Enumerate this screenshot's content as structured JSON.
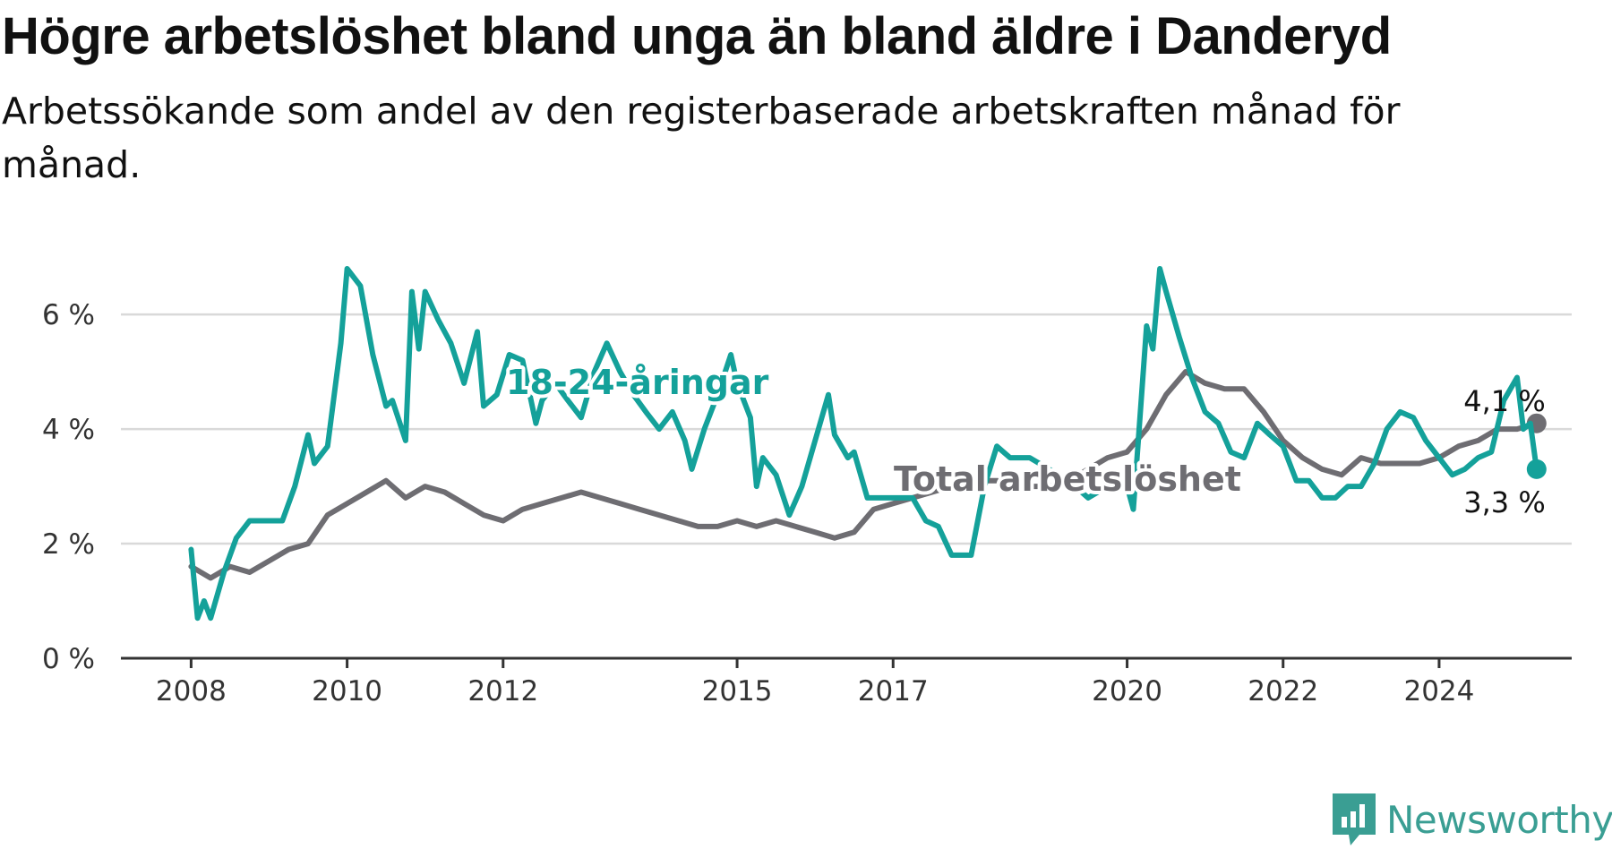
{
  "title": "Högre arbetslöshet bland unga än bland äldre i Danderyd",
  "subtitle": "Arbetssökande som andel av den registerbaserade arbetskraften månad för månad.",
  "logo_text": "Newsworthy",
  "colors": {
    "youth": "#14a19a",
    "total": "#6e6d72",
    "grid": "#d9d9d9",
    "axis": "#333333"
  },
  "chart_data": {
    "type": "line",
    "x_range": [
      2007.1,
      2025.7
    ],
    "ylim": [
      0,
      6.8
    ],
    "y_ticks": [
      0,
      2,
      4,
      6
    ],
    "y_tick_labels": [
      "0 %",
      "2 %",
      "4 %",
      "6 %"
    ],
    "x_ticks": [
      2008,
      2010,
      2012,
      2015,
      2017,
      2020,
      2022,
      2024
    ],
    "x_tick_labels": [
      "2008",
      "2010",
      "2012",
      "2015",
      "2017",
      "2020",
      "2022",
      "2024"
    ],
    "series": [
      {
        "name": "Total arbetslöshet",
        "color": "#6e6d72",
        "end_label": "4,1 %",
        "points": [
          [
            2008.0,
            1.6
          ],
          [
            2008.25,
            1.4
          ],
          [
            2008.5,
            1.6
          ],
          [
            2008.75,
            1.5
          ],
          [
            2009.0,
            1.7
          ],
          [
            2009.25,
            1.9
          ],
          [
            2009.5,
            2.0
          ],
          [
            2009.75,
            2.5
          ],
          [
            2010.0,
            2.7
          ],
          [
            2010.25,
            2.9
          ],
          [
            2010.5,
            3.1
          ],
          [
            2010.75,
            2.8
          ],
          [
            2011.0,
            3.0
          ],
          [
            2011.25,
            2.9
          ],
          [
            2011.5,
            2.7
          ],
          [
            2011.75,
            2.5
          ],
          [
            2012.0,
            2.4
          ],
          [
            2012.25,
            2.6
          ],
          [
            2012.5,
            2.7
          ],
          [
            2012.75,
            2.8
          ],
          [
            2013.0,
            2.9
          ],
          [
            2013.25,
            2.8
          ],
          [
            2013.5,
            2.7
          ],
          [
            2013.75,
            2.6
          ],
          [
            2014.0,
            2.5
          ],
          [
            2014.25,
            2.4
          ],
          [
            2014.5,
            2.3
          ],
          [
            2014.75,
            2.3
          ],
          [
            2015.0,
            2.4
          ],
          [
            2015.25,
            2.3
          ],
          [
            2015.5,
            2.4
          ],
          [
            2015.75,
            2.3
          ],
          [
            2016.0,
            2.2
          ],
          [
            2016.25,
            2.1
          ],
          [
            2016.5,
            2.2
          ],
          [
            2016.75,
            2.6
          ],
          [
            2017.0,
            2.7
          ],
          [
            2017.25,
            2.8
          ],
          [
            2017.5,
            2.9
          ],
          [
            2017.75,
            3.0
          ],
          [
            2018.0,
            3.1
          ],
          [
            2018.25,
            3.1
          ],
          [
            2018.5,
            3.1
          ],
          [
            2018.75,
            3.0
          ],
          [
            2019.0,
            3.0
          ],
          [
            2019.25,
            3.1
          ],
          [
            2019.5,
            3.3
          ],
          [
            2019.75,
            3.5
          ],
          [
            2020.0,
            3.6
          ],
          [
            2020.25,
            4.0
          ],
          [
            2020.5,
            4.6
          ],
          [
            2020.75,
            5.0
          ],
          [
            2021.0,
            4.8
          ],
          [
            2021.25,
            4.7
          ],
          [
            2021.5,
            4.7
          ],
          [
            2021.75,
            4.3
          ],
          [
            2022.0,
            3.8
          ],
          [
            2022.25,
            3.5
          ],
          [
            2022.5,
            3.3
          ],
          [
            2022.75,
            3.2
          ],
          [
            2023.0,
            3.5
          ],
          [
            2023.25,
            3.4
          ],
          [
            2023.5,
            3.4
          ],
          [
            2023.75,
            3.4
          ],
          [
            2024.0,
            3.5
          ],
          [
            2024.25,
            3.7
          ],
          [
            2024.5,
            3.8
          ],
          [
            2024.75,
            4.0
          ],
          [
            2025.0,
            4.0
          ],
          [
            2025.25,
            4.1
          ]
        ]
      },
      {
        "name": "18-24-åringar",
        "color": "#14a19a",
        "end_label": "3,3 %",
        "points": [
          [
            2008.0,
            1.9
          ],
          [
            2008.083,
            0.7
          ],
          [
            2008.167,
            1.0
          ],
          [
            2008.25,
            0.7
          ],
          [
            2008.42,
            1.5
          ],
          [
            2008.58,
            2.1
          ],
          [
            2008.75,
            2.4
          ],
          [
            2009.0,
            2.4
          ],
          [
            2009.17,
            2.4
          ],
          [
            2009.33,
            3.0
          ],
          [
            2009.5,
            3.9
          ],
          [
            2009.58,
            3.4
          ],
          [
            2009.75,
            3.7
          ],
          [
            2009.92,
            5.5
          ],
          [
            2010.0,
            6.8
          ],
          [
            2010.17,
            6.5
          ],
          [
            2010.33,
            5.3
          ],
          [
            2010.5,
            4.4
          ],
          [
            2010.58,
            4.5
          ],
          [
            2010.75,
            3.8
          ],
          [
            2010.83,
            6.4
          ],
          [
            2010.92,
            5.4
          ],
          [
            2011.0,
            6.4
          ],
          [
            2011.17,
            5.9
          ],
          [
            2011.33,
            5.5
          ],
          [
            2011.5,
            4.8
          ],
          [
            2011.67,
            5.7
          ],
          [
            2011.75,
            4.4
          ],
          [
            2011.92,
            4.6
          ],
          [
            2012.08,
            5.3
          ],
          [
            2012.25,
            5.2
          ],
          [
            2012.42,
            4.1
          ],
          [
            2012.5,
            4.5
          ],
          [
            2012.67,
            4.8
          ],
          [
            2012.83,
            4.5
          ],
          [
            2013.0,
            4.2
          ],
          [
            2013.17,
            5.0
          ],
          [
            2013.33,
            5.5
          ],
          [
            2013.5,
            5.0
          ],
          [
            2013.67,
            4.6
          ],
          [
            2013.83,
            4.3
          ],
          [
            2014.0,
            4.0
          ],
          [
            2014.17,
            4.3
          ],
          [
            2014.33,
            3.8
          ],
          [
            2014.42,
            3.3
          ],
          [
            2014.58,
            4.0
          ],
          [
            2014.75,
            4.6
          ],
          [
            2014.92,
            5.3
          ],
          [
            2015.0,
            4.8
          ],
          [
            2015.17,
            4.2
          ],
          [
            2015.25,
            3.0
          ],
          [
            2015.33,
            3.5
          ],
          [
            2015.5,
            3.2
          ],
          [
            2015.67,
            2.5
          ],
          [
            2015.83,
            3.0
          ],
          [
            2016.0,
            3.8
          ],
          [
            2016.17,
            4.6
          ],
          [
            2016.25,
            3.9
          ],
          [
            2016.42,
            3.5
          ],
          [
            2016.5,
            3.6
          ],
          [
            2016.67,
            2.8
          ],
          [
            2016.83,
            2.8
          ],
          [
            2017.0,
            2.8
          ],
          [
            2017.25,
            2.8
          ],
          [
            2017.42,
            2.4
          ],
          [
            2017.58,
            2.3
          ],
          [
            2017.75,
            1.8
          ],
          [
            2018.0,
            1.8
          ],
          [
            2018.17,
            3.0
          ],
          [
            2018.33,
            3.7
          ],
          [
            2018.5,
            3.5
          ],
          [
            2018.75,
            3.5
          ],
          [
            2019.0,
            3.3
          ],
          [
            2019.25,
            3.1
          ],
          [
            2019.5,
            2.8
          ],
          [
            2019.75,
            3.0
          ],
          [
            2020.0,
            3.0
          ],
          [
            2020.08,
            2.6
          ],
          [
            2020.25,
            5.8
          ],
          [
            2020.33,
            5.4
          ],
          [
            2020.42,
            6.8
          ],
          [
            2020.5,
            6.4
          ],
          [
            2020.67,
            5.6
          ],
          [
            2020.83,
            4.9
          ],
          [
            2021.0,
            4.3
          ],
          [
            2021.17,
            4.1
          ],
          [
            2021.33,
            3.6
          ],
          [
            2021.5,
            3.5
          ],
          [
            2021.67,
            4.1
          ],
          [
            2021.83,
            3.9
          ],
          [
            2022.0,
            3.7
          ],
          [
            2022.17,
            3.1
          ],
          [
            2022.33,
            3.1
          ],
          [
            2022.5,
            2.8
          ],
          [
            2022.67,
            2.8
          ],
          [
            2022.83,
            3.0
          ],
          [
            2023.0,
            3.0
          ],
          [
            2023.17,
            3.4
          ],
          [
            2023.33,
            4.0
          ],
          [
            2023.5,
            4.3
          ],
          [
            2023.67,
            4.2
          ],
          [
            2023.83,
            3.8
          ],
          [
            2024.0,
            3.5
          ],
          [
            2024.17,
            3.2
          ],
          [
            2024.33,
            3.3
          ],
          [
            2024.5,
            3.5
          ],
          [
            2024.67,
            3.6
          ],
          [
            2024.83,
            4.5
          ],
          [
            2025.0,
            4.9
          ],
          [
            2025.08,
            4.0
          ],
          [
            2025.17,
            4.1
          ],
          [
            2025.25,
            3.3
          ]
        ]
      }
    ]
  }
}
